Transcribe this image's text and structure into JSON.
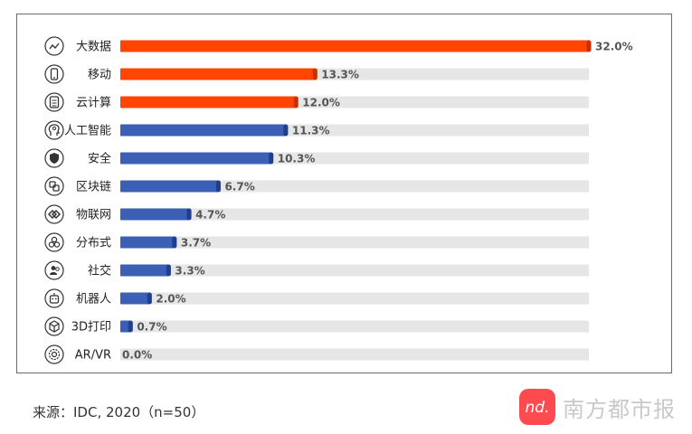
{
  "chart_data": {
    "type": "bar",
    "orientation": "horizontal",
    "categories": [
      "大数据",
      "移动",
      "云计算",
      "人工智能",
      "安全",
      "区块链",
      "物联网",
      "分布式",
      "社交",
      "机器人",
      "3D打印",
      "AR/VR"
    ],
    "values": [
      32.0,
      13.3,
      12.0,
      11.3,
      10.3,
      6.7,
      4.7,
      3.7,
      3.3,
      2.0,
      0.7,
      0.0
    ],
    "value_labels": [
      "32.0%",
      "13.3%",
      "12.0%",
      "11.3%",
      "10.3%",
      "6.7%",
      "4.7%",
      "3.7%",
      "3.3%",
      "2.0%",
      "0.7%",
      "0.0%"
    ],
    "icons": [
      "trend-line-icon",
      "mobile-phone-icon",
      "server-icon",
      "ai-head-icon",
      "shield-icon",
      "blockchain-icon",
      "iot-link-icon",
      "distributed-nodes-icon",
      "social-users-icon",
      "robot-icon",
      "cube-3d-icon",
      "vr-gear-icon"
    ],
    "highlight_count": 3,
    "xlim": [
      0,
      32.0
    ],
    "grid": false,
    "colors": {
      "highlight": "#ff4500",
      "highlight_cap": "#c73000",
      "normal": "#3a5fb5",
      "normal_cap": "#1f3e8c",
      "track": "#e6e6e6"
    }
  },
  "footer": {
    "source": "来源：IDC, 2020（n=50）",
    "brand": "南方都市报",
    "brand_mark": "nd."
  }
}
